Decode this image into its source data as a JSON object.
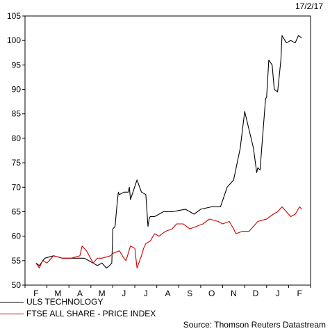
{
  "date_label": "17/2/17",
  "source": "Source: Thomson Reuters Datastream",
  "chart_data": {
    "type": "line",
    "ylim": [
      50,
      105
    ],
    "y_ticks": [
      50,
      55,
      60,
      65,
      70,
      75,
      80,
      85,
      90,
      95,
      100,
      105
    ],
    "x_ticks": [
      "F",
      "M",
      "A",
      "M",
      "J",
      "J",
      "A",
      "S",
      "O",
      "N",
      "D",
      "J",
      "F"
    ],
    "grid": false,
    "legend_position": "bottom-left",
    "series": [
      {
        "name": "ULS TECHNOLOGY",
        "color": "#000000",
        "x": [
          0,
          0.15,
          0.4,
          0.8,
          1.2,
          1.6,
          2.2,
          2.6,
          2.8,
          3.0,
          3.2,
          3.35,
          3.45,
          3.5,
          3.6,
          3.7,
          3.75,
          3.8,
          4.0,
          4.2,
          4.25,
          4.3,
          4.6,
          4.8,
          5.0,
          5.1,
          5.15,
          5.2,
          5.4,
          5.8,
          6.2,
          6.8,
          7.2,
          7.5,
          8.0,
          8.4,
          8.7,
          9.0,
          9.3,
          9.5,
          9.9,
          10.05,
          10.1,
          10.2,
          10.45,
          10.5,
          10.6,
          10.75,
          10.85,
          11.0,
          11.15,
          11.2,
          11.4,
          11.6,
          11.8,
          11.95,
          12.1
        ],
        "y": [
          54.5,
          54.0,
          55.5,
          56.0,
          55.5,
          55.5,
          55.5,
          54.5,
          54.0,
          54.5,
          53.5,
          54.0,
          54.5,
          61.5,
          62.0,
          67.0,
          69.0,
          68.5,
          69.0,
          69.0,
          70.0,
          67.5,
          71.5,
          69.0,
          68.5,
          62.0,
          63.5,
          64.0,
          64.0,
          65.0,
          65.0,
          65.5,
          64.5,
          65.5,
          66.0,
          66.0,
          70.0,
          71.5,
          78.0,
          85.5,
          78.0,
          73.0,
          74.0,
          73.5,
          88.0,
          88.5,
          96.0,
          95.0,
          90.0,
          89.5,
          96.0,
          101.0,
          99.5,
          100.0,
          99.5,
          101.0,
          100.5
        ]
      },
      {
        "name": "FTSE ALL SHARE - PRICE INDEX",
        "color": "#cc0000",
        "x": [
          0,
          0.15,
          0.3,
          0.5,
          0.8,
          1.2,
          1.6,
          2.0,
          2.1,
          2.3,
          2.6,
          2.8,
          3.0,
          3.4,
          3.5,
          3.8,
          4.0,
          4.1,
          4.3,
          4.5,
          4.6,
          4.8,
          4.9,
          5.0,
          5.2,
          5.4,
          5.6,
          5.9,
          6.2,
          6.4,
          6.7,
          7.0,
          7.3,
          7.6,
          7.9,
          8.3,
          8.5,
          8.8,
          9.0,
          9.1,
          9.4,
          9.7,
          10.1,
          10.5,
          10.8,
          11.0,
          11.2,
          11.4,
          11.6,
          11.8,
          12.0,
          12.1
        ],
        "y": [
          54.5,
          53.5,
          55.0,
          54.5,
          56.0,
          55.5,
          55.5,
          56.0,
          58.0,
          57.0,
          54.5,
          55.5,
          55.5,
          56.0,
          56.5,
          57.0,
          55.5,
          55.0,
          58.0,
          57.5,
          53.5,
          56.0,
          57.5,
          58.5,
          59.0,
          60.5,
          60.0,
          61.0,
          61.5,
          62.5,
          62.5,
          61.5,
          62.0,
          62.5,
          63.5,
          63.0,
          62.5,
          63.0,
          61.5,
          60.5,
          61.0,
          61.0,
          63.0,
          63.5,
          64.5,
          65.0,
          66.0,
          65.0,
          64.0,
          64.5,
          66.0,
          65.5
        ]
      }
    ]
  }
}
